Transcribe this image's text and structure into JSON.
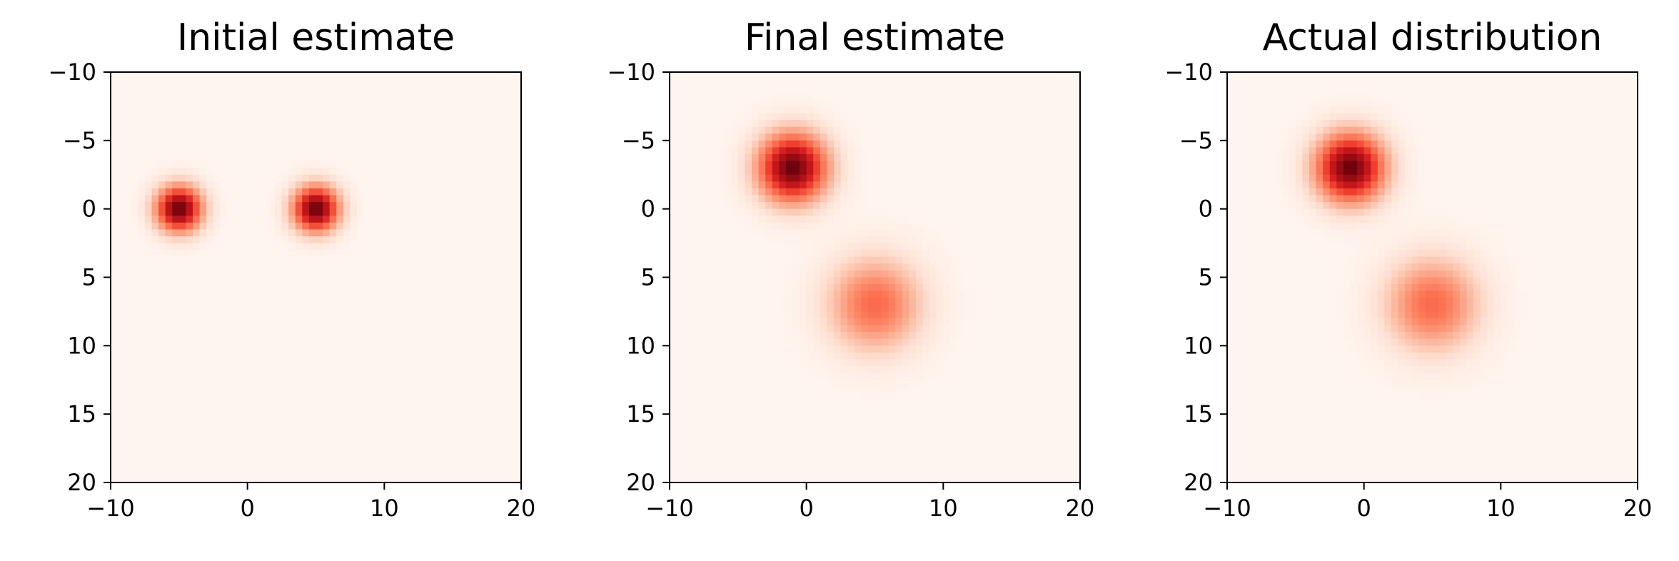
{
  "chart_data": [
    {
      "type": "heatmap",
      "title": "Initial estimate",
      "xlabel": "",
      "ylabel": "",
      "xlim": [
        -10,
        20
      ],
      "ylim": [
        20,
        -10
      ],
      "y_axis_inverted": true,
      "xticks": [
        -10,
        0,
        10,
        20
      ],
      "yticks": [
        -10,
        -5,
        0,
        5,
        10,
        15,
        20
      ],
      "xtick_labels": [
        "−10",
        "0",
        "10",
        "20"
      ],
      "ytick_labels": [
        "−10",
        "−5",
        "0",
        "5",
        "10",
        "15",
        "20"
      ],
      "grid": false,
      "colormap": "Reds",
      "peaks": [
        {
          "x": -5,
          "y": 0,
          "sigma": 1.2,
          "relative_intensity": 1.0
        },
        {
          "x": 5,
          "y": 0,
          "sigma": 1.2,
          "relative_intensity": 1.0
        }
      ]
    },
    {
      "type": "heatmap",
      "title": "Final estimate",
      "xlabel": "",
      "ylabel": "",
      "xlim": [
        -10,
        20
      ],
      "ylim": [
        20,
        -10
      ],
      "y_axis_inverted": true,
      "xticks": [
        -10,
        0,
        10,
        20
      ],
      "yticks": [
        -10,
        -5,
        0,
        5,
        10,
        15,
        20
      ],
      "xtick_labels": [
        "−10",
        "0",
        "10",
        "20"
      ],
      "ytick_labels": [
        "−10",
        "−5",
        "0",
        "5",
        "10",
        "15",
        "20"
      ],
      "grid": false,
      "colormap": "Reds",
      "peaks": [
        {
          "x": -1,
          "y": -3,
          "sigma": 1.8,
          "relative_intensity": 1.0
        },
        {
          "x": 5,
          "y": 7,
          "sigma": 2.4,
          "relative_intensity": 0.5
        }
      ]
    },
    {
      "type": "heatmap",
      "title": "Actual distribution",
      "xlabel": "",
      "ylabel": "",
      "xlim": [
        -10,
        20
      ],
      "ylim": [
        20,
        -10
      ],
      "y_axis_inverted": true,
      "xticks": [
        -10,
        0,
        10,
        20
      ],
      "yticks": [
        -10,
        -5,
        0,
        5,
        10,
        15,
        20
      ],
      "xtick_labels": [
        "−10",
        "0",
        "10",
        "20"
      ],
      "ytick_labels": [
        "−10",
        "−5",
        "0",
        "5",
        "10",
        "15",
        "20"
      ],
      "grid": false,
      "colormap": "Reds",
      "peaks": [
        {
          "x": -1,
          "y": -3,
          "sigma": 1.8,
          "relative_intensity": 1.0
        },
        {
          "x": 5,
          "y": 7,
          "sigma": 2.4,
          "relative_intensity": 0.5
        }
      ]
    }
  ]
}
